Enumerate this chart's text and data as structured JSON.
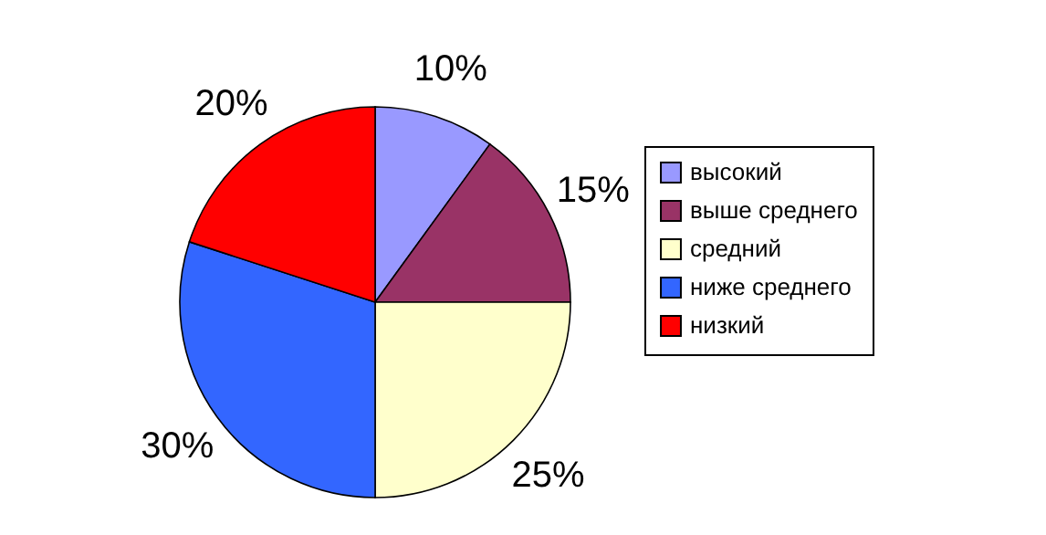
{
  "chart_data": {
    "type": "pie",
    "categories": [
      "высокий",
      "выше среднего",
      "средний",
      "ниже среднего",
      "низкий"
    ],
    "values": [
      10,
      15,
      25,
      30,
      20
    ],
    "colors": [
      "#9999ff",
      "#993366",
      "#ffffcc",
      "#3366ff",
      "#ff0000"
    ],
    "value_labels": [
      "10%",
      "15%",
      "25%",
      "30%",
      "20%"
    ],
    "legend": "right"
  }
}
